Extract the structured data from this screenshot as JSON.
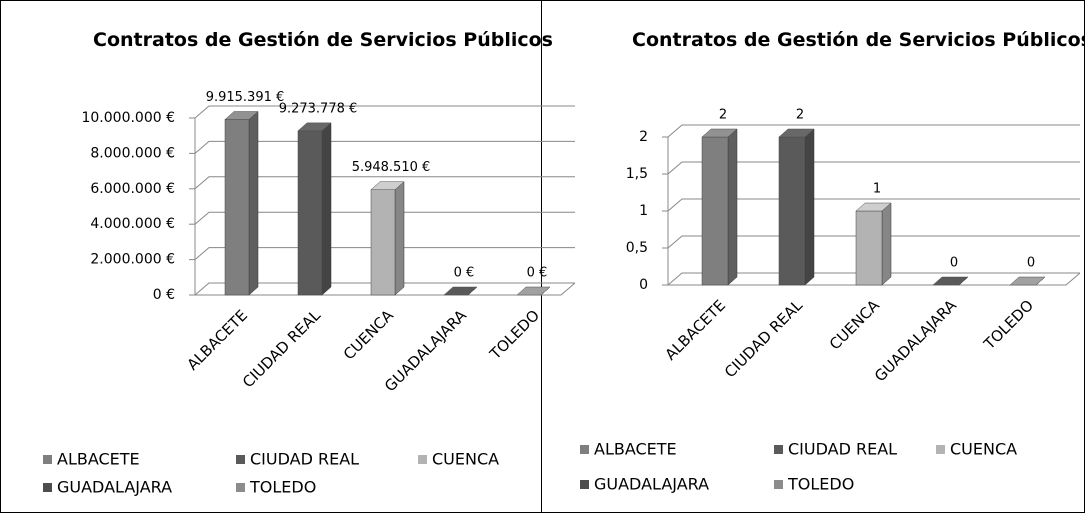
{
  "chart_data": [
    {
      "type": "bar3d",
      "title": "Contratos de Gestión de Servicios Públicos",
      "categories": [
        "ALBACETE",
        "CIUDAD REAL",
        "CUENCA",
        "GUADALAJARA",
        "TOLEDO"
      ],
      "values": [
        9915391,
        9273778,
        5948510,
        0,
        0
      ],
      "value_labels": [
        "9.915.391 €",
        "9.273.778 €",
        "5.948.510 €",
        "0 €",
        "0 €"
      ],
      "colors": [
        "#7f7f7f",
        "#5a5a5a",
        "#b3b3b3",
        "#4d4d4d",
        "#8c8c8c"
      ],
      "ylim": [
        0,
        10000000
      ],
      "yticks": [
        {
          "value": 0,
          "label": "0 €"
        },
        {
          "value": 2000000,
          "label": "2.000.000 €"
        },
        {
          "value": 4000000,
          "label": "4.000.000 €"
        },
        {
          "value": 6000000,
          "label": "6.000.000 €"
        },
        {
          "value": 8000000,
          "label": "8.000.000 €"
        },
        {
          "value": 10000000,
          "label": "10.000.000 €"
        }
      ],
      "grid": true,
      "legend": "bottom"
    },
    {
      "type": "bar3d",
      "title": "Contratos de Gestión de Servicios Públicos",
      "categories": [
        "ALBACETE",
        "CIUDAD REAL",
        "CUENCA",
        "GUADALAJARA",
        "TOLEDO"
      ],
      "values": [
        2,
        2,
        1,
        0,
        0
      ],
      "colors": [
        "#7f7f7f",
        "#5a5a5a",
        "#b3b3b3",
        "#4d4d4d",
        "#8c8c8c"
      ],
      "ylim": [
        0,
        2
      ],
      "yticks": [
        0,
        {
          "value": 0.5,
          "label": "0,5"
        },
        1,
        {
          "value": 1.5,
          "label": "1,5"
        },
        2
      ],
      "grid": true,
      "legend": "bottom"
    }
  ]
}
